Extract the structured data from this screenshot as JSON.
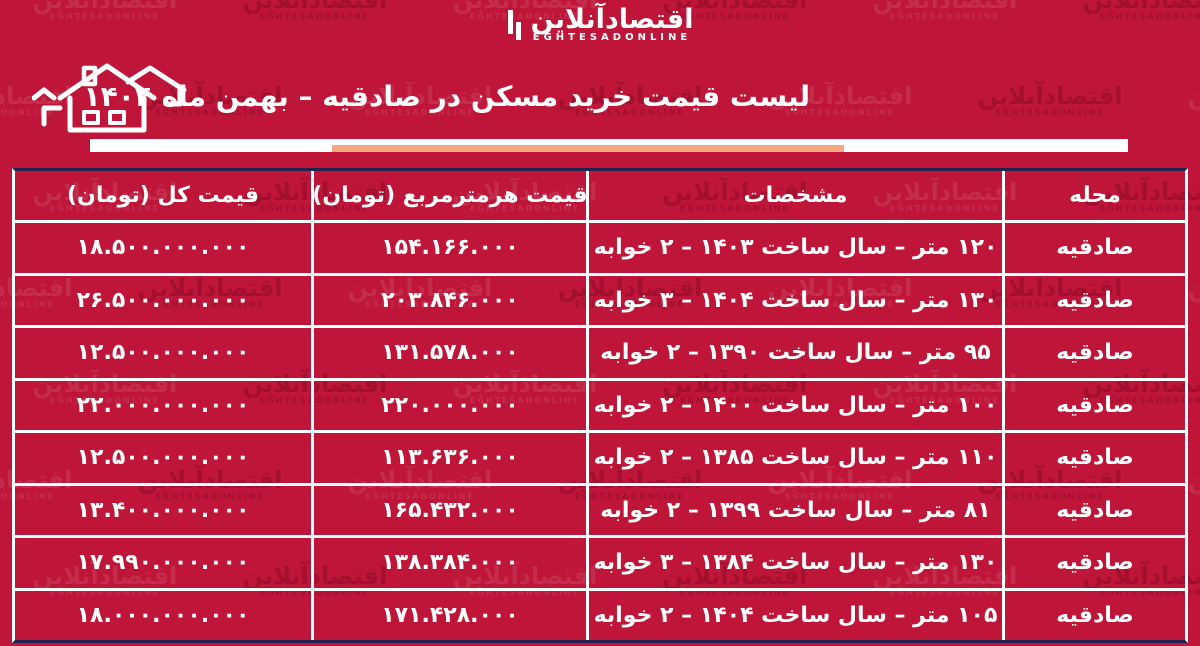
{
  "logo": {
    "fa": "اقتصادآنلاین",
    "en": "EGHTESADONLINE"
  },
  "watermark": {
    "fa": "اقتصادآنلاین",
    "en": "EGHTESADONLINE"
  },
  "header": {
    "title": "لیست قیمت خرید مسکن در صادقیه – بهمن ماه ۱۴۰۴"
  },
  "colors": {
    "background": "#be1538",
    "accent_bar": "#f2a881",
    "outer_border": "#23224e",
    "grid_lines": "#ffffff"
  },
  "chart_data": {
    "type": "table",
    "title": "لیست قیمت خرید مسکن در صادقیه – بهمن ماه ۱۴۰۴",
    "columns": [
      "محله",
      "مشخصات",
      "قیمت هرمترمربع (تومان)",
      "قیمت کل (تومان)"
    ],
    "rows": [
      [
        "صادقیه",
        "۱۲۰ متر – سال ساخت ۱۴۰۳ – ۲ خوابه",
        "۱۵۴.۱۶۶.۰۰۰",
        "۱۸.۵۰۰.۰۰۰.۰۰۰"
      ],
      [
        "صادقیه",
        "۱۳۰ متر – سال ساخت ۱۴۰۴ – ۳ خوابه",
        "۲۰۳.۸۴۶.۰۰۰",
        "۲۶.۵۰۰.۰۰۰.۰۰۰"
      ],
      [
        "صادقیه",
        "۹۵ متر – سال ساخت ۱۳۹۰ – ۲ خوابه",
        "۱۳۱.۵۷۸.۰۰۰",
        "۱۲.۵۰۰.۰۰۰.۰۰۰"
      ],
      [
        "صادقیه",
        "۱۰۰ متر – سال ساخت ۱۴۰۰ – ۲ خوابه",
        "۲۲۰.۰۰۰.۰۰۰",
        "۲۲.۰۰۰.۰۰۰.۰۰۰"
      ],
      [
        "صادقیه",
        "۱۱۰ متر – سال ساخت ۱۳۸۵ – ۲ خوابه",
        "۱۱۳.۶۳۶.۰۰۰",
        "۱۲.۵۰۰.۰۰۰.۰۰۰"
      ],
      [
        "صادقیه",
        "۸۱ متر – سال ساخت ۱۳۹۹ – ۲ خوابه",
        "۱۶۵.۴۳۲.۰۰۰",
        "۱۳.۴۰۰.۰۰۰.۰۰۰"
      ],
      [
        "صادقیه",
        "۱۳۰ متر – سال ساخت ۱۳۸۴ – ۳ خوابه",
        "۱۳۸.۳۸۴.۰۰۰",
        "۱۷.۹۹۰.۰۰۰.۰۰۰"
      ],
      [
        "صادقیه",
        "۱۰۵ متر – سال ساخت ۱۴۰۴ – ۲ خوابه",
        "۱۷۱.۴۲۸.۰۰۰",
        "۱۸.۰۰۰.۰۰۰.۰۰۰"
      ]
    ],
    "rows_numeric": [
      {
        "neighborhood": "صادقیه",
        "area_m2": 120,
        "year_built": 1403,
        "bedrooms": 2,
        "price_per_m2_toman": 154166000,
        "total_price_toman": 18500000000
      },
      {
        "neighborhood": "صادقیه",
        "area_m2": 130,
        "year_built": 1404,
        "bedrooms": 3,
        "price_per_m2_toman": 203846000,
        "total_price_toman": 26500000000
      },
      {
        "neighborhood": "صادقیه",
        "area_m2": 95,
        "year_built": 1390,
        "bedrooms": 2,
        "price_per_m2_toman": 131578000,
        "total_price_toman": 12500000000
      },
      {
        "neighborhood": "صادقیه",
        "area_m2": 100,
        "year_built": 1400,
        "bedrooms": 2,
        "price_per_m2_toman": 220000000,
        "total_price_toman": 22000000000
      },
      {
        "neighborhood": "صادقیه",
        "area_m2": 110,
        "year_built": 1385,
        "bedrooms": 2,
        "price_per_m2_toman": 113636000,
        "total_price_toman": 12500000000
      },
      {
        "neighborhood": "صادقیه",
        "area_m2": 81,
        "year_built": 1399,
        "bedrooms": 2,
        "price_per_m2_toman": 165432000,
        "total_price_toman": 13400000000
      },
      {
        "neighborhood": "صادقیه",
        "area_m2": 130,
        "year_built": 1384,
        "bedrooms": 3,
        "price_per_m2_toman": 138384000,
        "total_price_toman": 17990000000
      },
      {
        "neighborhood": "صادقیه",
        "area_m2": 105,
        "year_built": 1404,
        "bedrooms": 2,
        "price_per_m2_toman": 171428000,
        "total_price_toman": 18000000000
      }
    ]
  }
}
